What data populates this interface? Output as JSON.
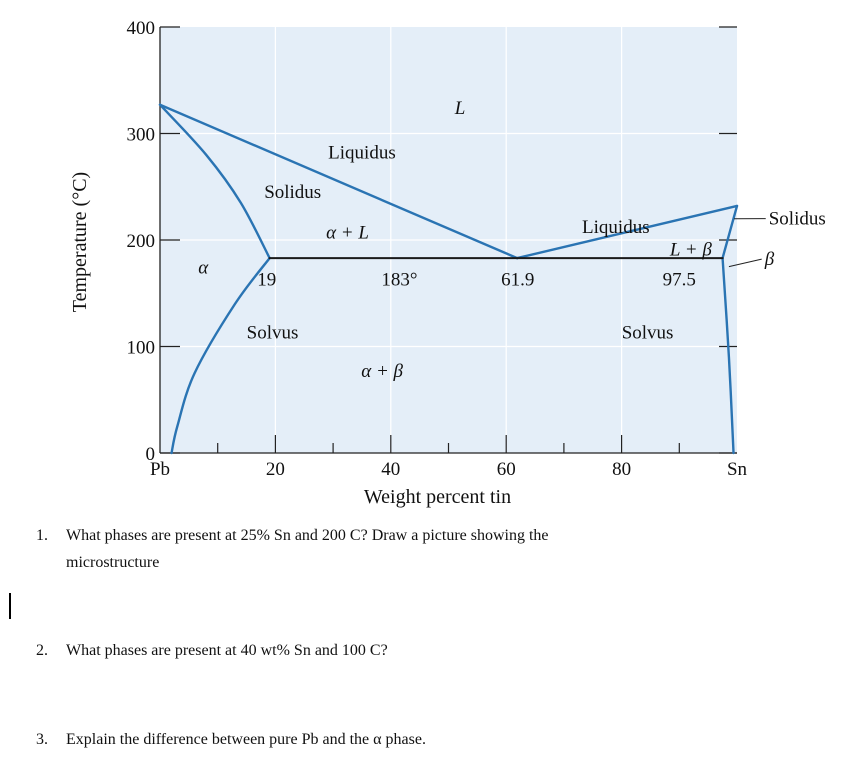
{
  "chart_data": {
    "type": "phase-diagram",
    "title": "",
    "xlabel": "Weight percent tin",
    "ylabel": "Temperature (°C)",
    "xlim": [
      0,
      100
    ],
    "ylim": [
      0,
      400
    ],
    "x_ticks": [
      {
        "value": 0,
        "label": "Pb"
      },
      {
        "value": 20,
        "label": "20"
      },
      {
        "value": 40,
        "label": "40"
      },
      {
        "value": 60,
        "label": "60"
      },
      {
        "value": 80,
        "label": "80"
      },
      {
        "value": 100,
        "label": "Sn"
      }
    ],
    "y_ticks": [
      {
        "value": 0,
        "label": "0"
      },
      {
        "value": 100,
        "label": "100"
      },
      {
        "value": 200,
        "label": "200"
      },
      {
        "value": 300,
        "label": "300"
      },
      {
        "value": 400,
        "label": "400"
      }
    ],
    "grid": true,
    "colors": {
      "background": "#e4eef8",
      "line": "#2a74b3",
      "isotherm": "#1a1a1a",
      "grid": "#ffffff"
    },
    "series": [
      {
        "name": "Liquidus (Pb side)",
        "x": [
          0,
          61.9
        ],
        "y": [
          327,
          183
        ]
      },
      {
        "name": "Liquidus (Sn side)",
        "x": [
          61.9,
          100
        ],
        "y": [
          183,
          232
        ]
      },
      {
        "name": "Solidus (Pb side)",
        "x": [
          0,
          8,
          14,
          19
        ],
        "y": [
          327,
          280,
          235,
          183
        ]
      },
      {
        "name": "Solidus (Sn side)",
        "x": [
          97.5,
          100
        ],
        "y": [
          183,
          232
        ]
      },
      {
        "name": "Solvus (Pb side)",
        "x": [
          19,
          13,
          6,
          3,
          2
        ],
        "y": [
          183,
          140,
          75,
          25,
          0
        ]
      },
      {
        "name": "Solvus (Sn side)",
        "x": [
          97.5,
          98.6,
          99.4
        ],
        "y": [
          183,
          90,
          0
        ]
      },
      {
        "name": "Eutectic isotherm",
        "x": [
          19,
          97.5
        ],
        "y": [
          183,
          183
        ]
      }
    ],
    "annotations": [
      {
        "text": "L",
        "x": 52,
        "y": 325,
        "italic": true
      },
      {
        "text": "Liquidus",
        "x": 35,
        "y": 283
      },
      {
        "text": "Solidus",
        "x": 23,
        "y": 246
      },
      {
        "text": "α + L",
        "x": 32.5,
        "y": 208,
        "italic": true
      },
      {
        "text": "Liquidus",
        "x": 79,
        "y": 213
      },
      {
        "text": "L + β",
        "x": 92,
        "y": 192,
        "italic": true
      },
      {
        "text": "α",
        "x": 7.5,
        "y": 175,
        "italic": true
      },
      {
        "text": "19",
        "x": 18.5,
        "y": 164
      },
      {
        "text": "183°",
        "x": 41.5,
        "y": 164
      },
      {
        "text": "61.9",
        "x": 62,
        "y": 164
      },
      {
        "text": "97.5",
        "x": 90,
        "y": 164
      },
      {
        "text": "Solvus",
        "x": 19.5,
        "y": 114
      },
      {
        "text": "Solvus",
        "x": 84.5,
        "y": 114
      },
      {
        "text": "α + β",
        "x": 38.5,
        "y": 78,
        "italic": true
      }
    ],
    "callouts": [
      {
        "text": "Solidus",
        "x": 105.5,
        "y": 221,
        "point_x": 99.5,
        "point_y": 220
      },
      {
        "text": "β",
        "x": 104.8,
        "y": 183,
        "point_x": 98.6,
        "point_y": 175,
        "italic": true
      }
    ]
  },
  "questions": [
    {
      "number": "1.",
      "text": "What phases are present at 25% Sn and 200 C? Draw a picture showing the",
      "continuation": "microstructure"
    },
    {
      "number": "2.",
      "text": "What phases are present at 40 wt% Sn and 100 C?"
    },
    {
      "number": "3.",
      "text": "Explain the difference between pure Pb and the α phase."
    }
  ]
}
